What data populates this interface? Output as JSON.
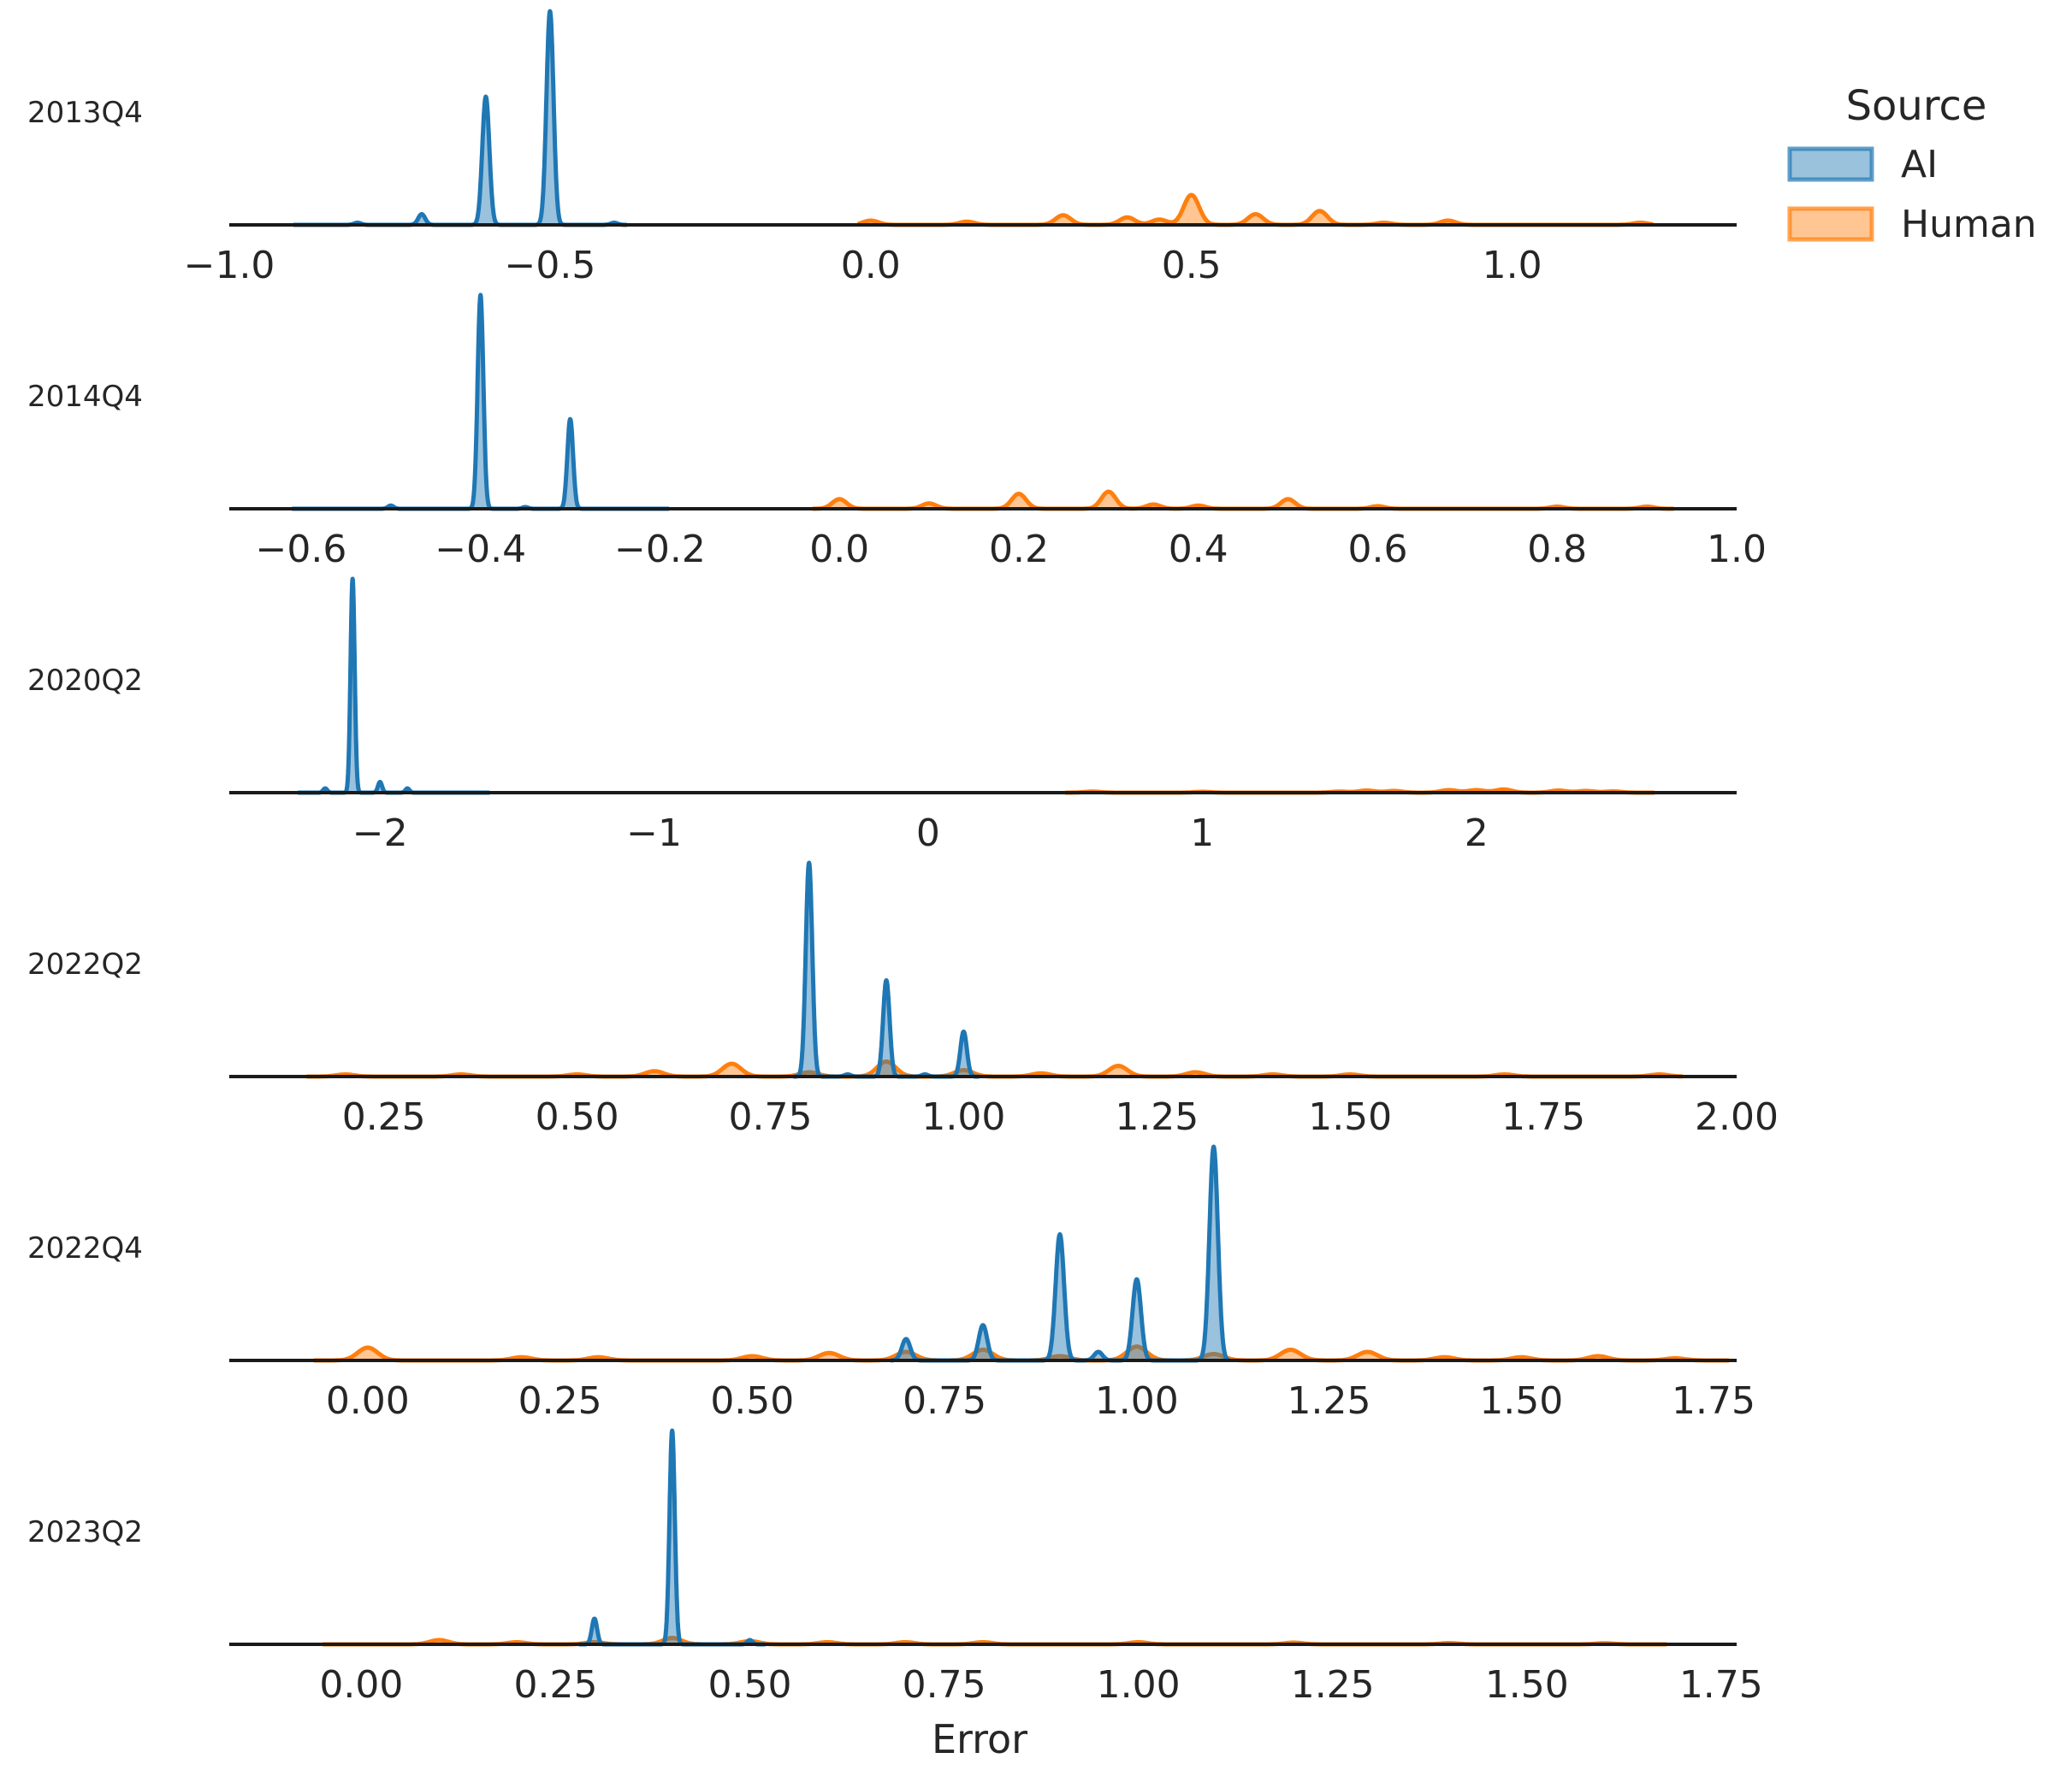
{
  "chart_data": {
    "type": "ridgeline-kde",
    "xlabel": "Error",
    "legend": {
      "title": "Source",
      "placement": "top-right",
      "entries": [
        {
          "label": "AI",
          "color": "#1f77b4"
        },
        {
          "label": "Human",
          "color": "#ff7f0e"
        }
      ]
    },
    "panels": [
      {
        "label": "2013Q4",
        "xlim": [
          -1.0,
          1.35
        ],
        "ticks": [
          -1.0,
          -0.5,
          0.0,
          0.5,
          1.0
        ],
        "tick_labels": [
          "−1.0",
          "−0.5",
          "0.0",
          "0.5",
          "1.0"
        ],
        "series": [
          {
            "name": "AI",
            "range": [
              -0.9,
              -0.38
            ],
            "bw": 0.0055,
            "peaks": [
              [
                -0.7,
                0.05
              ],
              [
                -0.8,
                0.01
              ],
              [
                -0.6,
                0.6
              ],
              [
                -0.5,
                1.0
              ],
              [
                -0.4,
                0.01
              ]
            ]
          },
          {
            "name": "Human",
            "range": [
              -0.02,
              1.22
            ],
            "bw": 0.012,
            "peaks": [
              [
                0.0,
                0.02
              ],
              [
                0.15,
                0.015
              ],
              [
                0.3,
                0.045
              ],
              [
                0.4,
                0.035
              ],
              [
                0.45,
                0.025
              ],
              [
                0.5,
                0.14
              ],
              [
                0.6,
                0.05
              ],
              [
                0.7,
                0.065
              ],
              [
                0.8,
                0.01
              ],
              [
                0.9,
                0.02
              ],
              [
                1.2,
                0.01
              ]
            ]
          }
        ]
      },
      {
        "label": "2014Q4",
        "xlim": [
          -0.68,
          1.0
        ],
        "ticks": [
          -0.6,
          -0.4,
          -0.2,
          0.0,
          0.2,
          0.4,
          0.6,
          0.8,
          1.0
        ],
        "tick_labels": [
          "−0.6",
          "−0.4",
          "−0.2",
          "0.0",
          "0.2",
          "0.4",
          "0.6",
          "0.8",
          "1.0"
        ],
        "series": [
          {
            "name": "AI",
            "range": [
              -0.61,
              -0.19
            ],
            "bw": 0.0032,
            "peaks": [
              [
                -0.5,
                0.015
              ],
              [
                -0.4,
                1.0
              ],
              [
                -0.35,
                0.008
              ],
              [
                -0.3,
                0.42
              ]
            ]
          },
          {
            "name": "Human",
            "range": [
              -0.03,
              0.93
            ],
            "bw": 0.008,
            "peaks": [
              [
                0.0,
                0.045
              ],
              [
                0.1,
                0.025
              ],
              [
                0.2,
                0.07
              ],
              [
                0.3,
                0.08
              ],
              [
                0.35,
                0.02
              ],
              [
                0.4,
                0.015
              ],
              [
                0.5,
                0.045
              ],
              [
                0.6,
                0.012
              ],
              [
                0.8,
                0.01
              ],
              [
                0.9,
                0.01
              ]
            ]
          }
        ]
      },
      {
        "label": "2020Q2",
        "xlim": [
          -2.55,
          2.95
        ],
        "ticks": [
          -2,
          -1,
          0,
          1,
          2
        ],
        "tick_labels": [
          "−2",
          "−1",
          "0",
          "1",
          "2"
        ],
        "series": [
          {
            "name": "AI",
            "range": [
              -2.3,
              -1.6
            ],
            "bw": 0.0075,
            "peaks": [
              [
                -2.2,
                0.02
              ],
              [
                -2.1,
                1.0
              ],
              [
                -2.0,
                0.05
              ],
              [
                -1.9,
                0.02
              ]
            ]
          },
          {
            "name": "Human",
            "range": [
              0.5,
              2.65
            ],
            "bw": 0.03,
            "peaks": [
              [
                0.6,
                0.005
              ],
              [
                1.0,
                0.004
              ],
              [
                1.5,
                0.005
              ],
              [
                1.6,
                0.01
              ],
              [
                1.7,
                0.008
              ],
              [
                1.9,
                0.012
              ],
              [
                2.0,
                0.012
              ],
              [
                2.1,
                0.015
              ],
              [
                2.3,
                0.01
              ],
              [
                2.4,
                0.008
              ],
              [
                2.5,
                0.006
              ]
            ]
          }
        ]
      },
      {
        "label": "2022Q2",
        "xlim": [
          0.05,
          2.0
        ],
        "ticks": [
          0.25,
          0.5,
          0.75,
          1.0,
          1.25,
          1.5,
          1.75,
          2.0
        ],
        "tick_labels": [
          "0.25",
          "0.50",
          "0.75",
          "1.00",
          "1.25",
          "1.50",
          "1.75",
          "2.00"
        ],
        "series": [
          {
            "name": "AI",
            "range": [
              0.78,
              1.02
            ],
            "bw": 0.0042,
            "peaks": [
              [
                0.8,
                1.0
              ],
              [
                0.9,
                0.45
              ],
              [
                1.0,
                0.21
              ],
              [
                0.85,
                0.01
              ],
              [
                0.95,
                0.01
              ]
            ]
          },
          {
            "name": "Human",
            "range": [
              0.15,
              1.93
            ],
            "bw": 0.012,
            "peaks": [
              [
                0.2,
                0.01
              ],
              [
                0.35,
                0.01
              ],
              [
                0.5,
                0.01
              ],
              [
                0.6,
                0.025
              ],
              [
                0.7,
                0.06
              ],
              [
                0.8,
                0.02
              ],
              [
                0.9,
                0.07
              ],
              [
                1.0,
                0.03
              ],
              [
                1.1,
                0.015
              ],
              [
                1.2,
                0.05
              ],
              [
                1.3,
                0.02
              ],
              [
                1.4,
                0.01
              ],
              [
                1.5,
                0.01
              ],
              [
                1.7,
                0.01
              ],
              [
                1.9,
                0.01
              ]
            ]
          }
        ]
      },
      {
        "label": "2022Q4",
        "xlim": [
          -0.18,
          1.78
        ],
        "ticks": [
          0.0,
          0.25,
          0.5,
          0.75,
          1.0,
          1.25,
          1.5,
          1.75
        ],
        "tick_labels": [
          "0.00",
          "0.25",
          "0.50",
          "0.75",
          "1.00",
          "1.25",
          "1.50",
          "1.75"
        ],
        "series": [
          {
            "name": "AI",
            "range": [
              0.68,
              1.12
            ],
            "bw": 0.0055,
            "peaks": [
              [
                0.7,
                0.1
              ],
              [
                0.8,
                0.165
              ],
              [
                0.9,
                0.59
              ],
              [
                0.95,
                0.04
              ],
              [
                1.0,
                0.38
              ],
              [
                1.1,
                1.0
              ]
            ]
          },
          {
            "name": "Human",
            "range": [
              -0.07,
              1.77
            ],
            "bw": 0.013,
            "peaks": [
              [
                0.0,
                0.06
              ],
              [
                0.2,
                0.015
              ],
              [
                0.3,
                0.015
              ],
              [
                0.5,
                0.02
              ],
              [
                0.6,
                0.035
              ],
              [
                0.7,
                0.04
              ],
              [
                0.8,
                0.05
              ],
              [
                0.9,
                0.02
              ],
              [
                1.0,
                0.065
              ],
              [
                1.1,
                0.03
              ],
              [
                1.2,
                0.05
              ],
              [
                1.3,
                0.04
              ],
              [
                1.4,
                0.015
              ],
              [
                1.5,
                0.015
              ],
              [
                1.6,
                0.02
              ],
              [
                1.7,
                0.01
              ]
            ]
          }
        ]
      },
      {
        "label": "2023Q2",
        "xlim": [
          -0.17,
          1.77
        ],
        "ticks": [
          0.0,
          0.25,
          0.5,
          0.75,
          1.0,
          1.25,
          1.5,
          1.75
        ],
        "tick_labels": [
          "0.00",
          "0.25",
          "0.50",
          "0.75",
          "1.00",
          "1.25",
          "1.50",
          "1.75"
        ],
        "series": [
          {
            "name": "AI",
            "range": [
              0.28,
              0.52
            ],
            "bw": 0.0034,
            "peaks": [
              [
                0.3,
                0.12
              ],
              [
                0.4,
                1.0
              ],
              [
                0.5,
                0.02
              ]
            ]
          },
          {
            "name": "Human",
            "range": [
              -0.05,
              1.68
            ],
            "bw": 0.012,
            "peaks": [
              [
                0.1,
                0.02
              ],
              [
                0.2,
                0.01
              ],
              [
                0.3,
                0.01
              ],
              [
                0.4,
                0.03
              ],
              [
                0.5,
                0.015
              ],
              [
                0.6,
                0.01
              ],
              [
                0.7,
                0.01
              ],
              [
                0.8,
                0.01
              ],
              [
                1.0,
                0.01
              ],
              [
                1.2,
                0.008
              ],
              [
                1.4,
                0.006
              ],
              [
                1.6,
                0.005
              ]
            ]
          }
        ]
      }
    ]
  }
}
